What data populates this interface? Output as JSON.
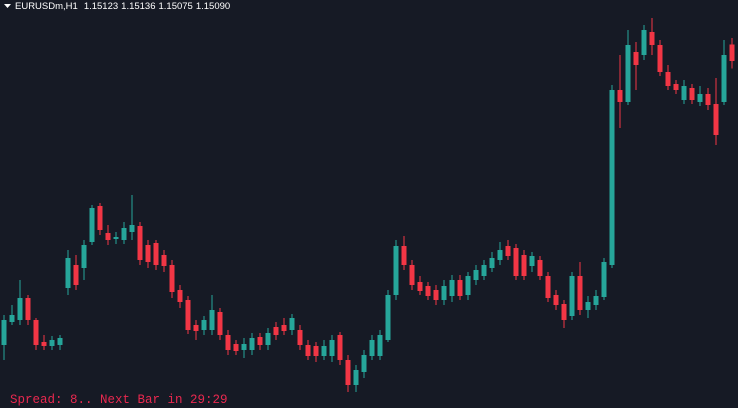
{
  "chart_data": {
    "type": "candlestick",
    "symbol": "EURUSDm,H1",
    "header_values": [
      "1.15123",
      "1.15136",
      "1.15075",
      "1.15090"
    ],
    "footer": "Spread: 8.. Next Bar in 29:29",
    "ylim": [
      1.14396,
      1.15212
    ],
    "colors": {
      "up": "#26a69a",
      "down": "#f23645"
    },
    "open": [
      1.14522,
      1.14568,
      1.14572,
      1.14616,
      1.14572,
      1.14528,
      1.1452,
      1.14522,
      1.14636,
      1.14682,
      1.14676,
      1.14728,
      1.148,
      1.14746,
      1.14734,
      1.14732,
      1.14748,
      1.1476,
      1.14722,
      1.14726,
      1.14702,
      1.14682,
      1.14632,
      1.14612,
      1.14562,
      1.14552,
      1.14552,
      1.14588,
      1.14542,
      1.14524,
      1.14512,
      1.14512,
      1.14538,
      1.14522,
      1.14558,
      1.14562,
      1.14552,
      1.14552,
      1.14522,
      1.1452,
      1.145,
      1.145,
      1.14542,
      1.14492,
      1.14442,
      1.14468,
      1.145,
      1.145,
      1.14532,
      1.14622,
      1.1472,
      1.14682,
      1.14648,
      1.1464,
      1.14632,
      1.14612,
      1.1462,
      1.14652,
      1.14622,
      1.14652,
      1.1466,
      1.14676,
      1.14692,
      1.1472,
      1.14716,
      1.14702,
      1.1468,
      1.14692,
      1.1466,
      1.14622,
      1.14604,
      1.1458,
      1.1466,
      1.14592,
      1.14602,
      1.14618,
      1.14682,
      1.15032,
      1.15008,
      1.15108,
      1.15102,
      1.15148,
      1.15122,
      1.15068,
      1.15044,
      1.15012,
      1.15036,
      1.15008,
      1.15024,
      1.15004,
      1.15008,
      1.15123
    ],
    "high": [
      1.14582,
      1.14602,
      1.14652,
      1.14622,
      1.14576,
      1.14542,
      1.1454,
      1.14542,
      1.14712,
      1.14702,
      1.14732,
      1.14802,
      1.14806,
      1.14762,
      1.14748,
      1.14768,
      1.14822,
      1.14768,
      1.14732,
      1.14732,
      1.14712,
      1.14692,
      1.14642,
      1.1462,
      1.14572,
      1.1458,
      1.14622,
      1.14596,
      1.14552,
      1.14532,
      1.14536,
      1.14546,
      1.14546,
      1.14556,
      1.14568,
      1.14576,
      1.14584,
      1.14562,
      1.14532,
      1.14528,
      1.14532,
      1.14542,
      1.14548,
      1.14502,
      1.14482,
      1.14512,
      1.14542,
      1.14552,
      1.14632,
      1.14732,
      1.1474,
      1.14692,
      1.1466,
      1.14648,
      1.14642,
      1.14652,
      1.14662,
      1.14662,
      1.14668,
      1.14682,
      1.14692,
      1.14708,
      1.14728,
      1.14732,
      1.14724,
      1.14712,
      1.14708,
      1.147,
      1.14668,
      1.14632,
      1.14612,
      1.14668,
      1.14688,
      1.1462,
      1.14632,
      1.14696,
      1.15042,
      1.15102,
      1.15152,
      1.15128,
      1.15162,
      1.15176,
      1.15132,
      1.15082,
      1.15052,
      1.15052,
      1.15044,
      1.1504,
      1.15036,
      1.15056,
      1.15132,
      1.15136
    ],
    "low": [
      1.14492,
      1.14562,
      1.14562,
      1.14562,
      1.14512,
      1.14512,
      1.14512,
      1.14512,
      1.14622,
      1.14632,
      1.14652,
      1.14722,
      1.14742,
      1.14722,
      1.14724,
      1.14724,
      1.14732,
      1.14682,
      1.14676,
      1.14672,
      1.14668,
      1.14616,
      1.14596,
      1.14544,
      1.14532,
      1.14542,
      1.14542,
      1.14532,
      1.14502,
      1.14502,
      1.14496,
      1.14502,
      1.14512,
      1.14512,
      1.14532,
      1.14542,
      1.14542,
      1.14512,
      1.14492,
      1.14488,
      1.14492,
      1.14488,
      1.14482,
      1.14428,
      1.14428,
      1.14456,
      1.14492,
      1.14492,
      1.14528,
      1.14612,
      1.14672,
      1.14632,
      1.14622,
      1.14612,
      1.14602,
      1.14602,
      1.14608,
      1.14612,
      1.14612,
      1.14642,
      1.14652,
      1.14668,
      1.14682,
      1.14692,
      1.14652,
      1.14652,
      1.14668,
      1.14652,
      1.14608,
      1.14592,
      1.14556,
      1.14572,
      1.14582,
      1.14576,
      1.14592,
      1.14612,
      1.14676,
      1.14956,
      1.15002,
      1.15032,
      1.15092,
      1.15102,
      1.1506,
      1.15032,
      1.15024,
      1.15004,
      1.15004,
      1.15,
      1.14992,
      1.14922,
      1.15002,
      1.15075
    ],
    "close": [
      1.14572,
      1.14582,
      1.14616,
      1.14572,
      1.14522,
      1.1452,
      1.14532,
      1.14536,
      1.14696,
      1.14642,
      1.14722,
      1.14796,
      1.14752,
      1.14732,
      1.14738,
      1.14756,
      1.14762,
      1.14692,
      1.14688,
      1.14682,
      1.1468,
      1.14628,
      1.14608,
      1.14552,
      1.1455,
      1.14572,
      1.14592,
      1.14542,
      1.14512,
      1.1451,
      1.14524,
      1.14536,
      1.14522,
      1.14546,
      1.14542,
      1.1455,
      1.14576,
      1.14522,
      1.145,
      1.145,
      1.1452,
      1.14532,
      1.14492,
      1.14442,
      1.14472,
      1.14502,
      1.14532,
      1.14542,
      1.14622,
      1.1472,
      1.14682,
      1.14642,
      1.1463,
      1.1462,
      1.14612,
      1.1464,
      1.14652,
      1.1462,
      1.1466,
      1.14672,
      1.14682,
      1.14696,
      1.14712,
      1.147,
      1.1466,
      1.1466,
      1.147,
      1.1466,
      1.14616,
      1.14602,
      1.14572,
      1.1466,
      1.14592,
      1.14608,
      1.1462,
      1.14688,
      1.15032,
      1.15008,
      1.15122,
      1.15082,
      1.15152,
      1.15122,
      1.15068,
      1.1504,
      1.15032,
      1.1504,
      1.15012,
      1.15024,
      1.15002,
      1.14942,
      1.15102,
      1.1509
    ]
  }
}
